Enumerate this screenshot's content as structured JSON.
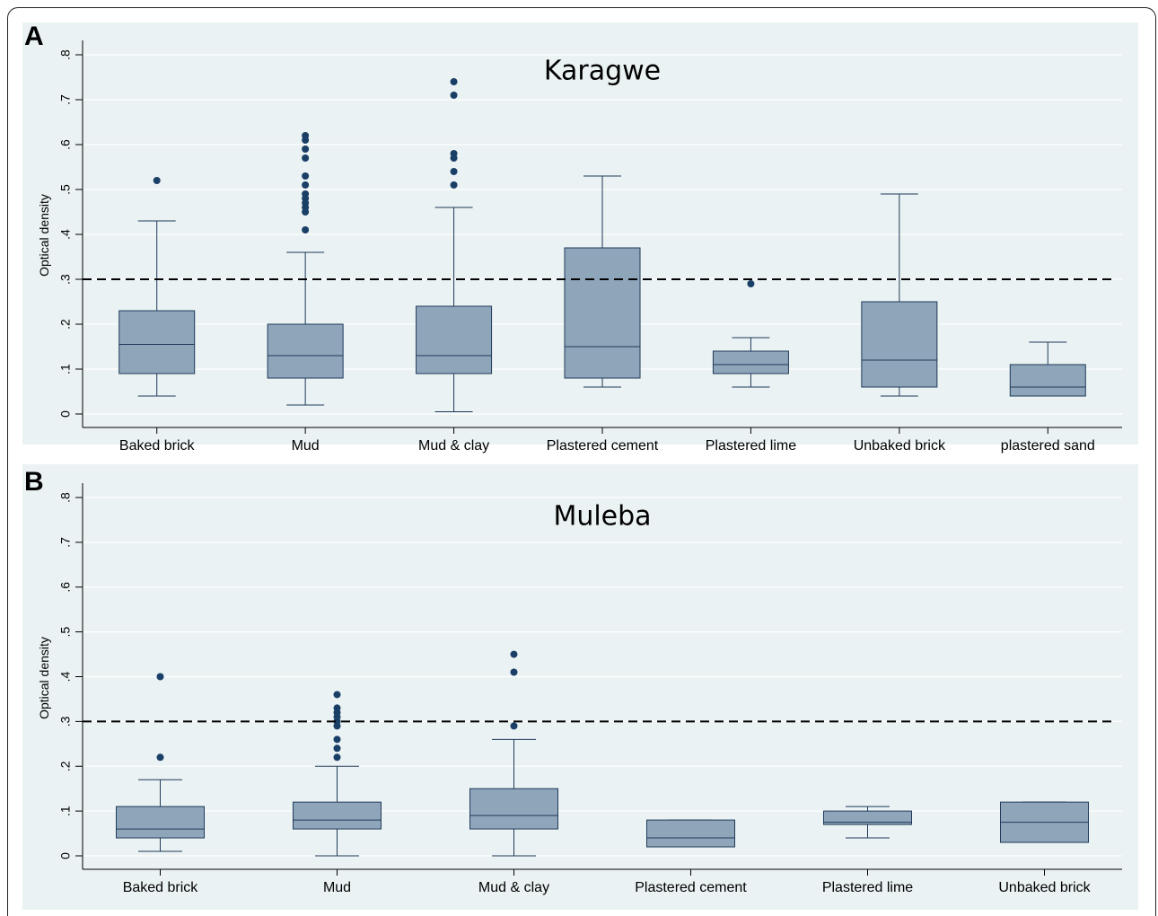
{
  "chart_data": [
    {
      "panel_letter": "A",
      "type": "box",
      "title": "Karagwe",
      "ylabel": "Optical density",
      "ylim": [
        0,
        0.8
      ],
      "yticks": [
        0,
        0.1,
        0.2,
        0.3,
        0.4,
        0.5,
        0.6,
        0.7,
        0.8
      ],
      "ytick_labels": [
        "0",
        ".1",
        ".2",
        ".3",
        ".4",
        ".5",
        ".6",
        ".7",
        ".8"
      ],
      "threshold": 0.3,
      "grid": true,
      "categories": [
        "Baked brick",
        "Mud",
        "Mud  & clay",
        "Plastered cement",
        "Plastered lime",
        "Unbaked brick",
        "plastered sand"
      ],
      "boxes": [
        {
          "whisker_low": 0.04,
          "q1": 0.09,
          "median": 0.155,
          "q3": 0.23,
          "whisker_high": 0.43,
          "outliers": [
            0.52
          ]
        },
        {
          "whisker_low": 0.02,
          "q1": 0.08,
          "median": 0.13,
          "q3": 0.2,
          "whisker_high": 0.36,
          "outliers": [
            0.41,
            0.45,
            0.46,
            0.47,
            0.48,
            0.49,
            0.51,
            0.53,
            0.57,
            0.59,
            0.61,
            0.62
          ]
        },
        {
          "whisker_low": 0.005,
          "q1": 0.09,
          "median": 0.13,
          "q3": 0.24,
          "whisker_high": 0.46,
          "outliers": [
            0.51,
            0.54,
            0.57,
            0.58,
            0.71,
            0.74
          ]
        },
        {
          "whisker_low": 0.06,
          "q1": 0.08,
          "median": 0.15,
          "q3": 0.37,
          "whisker_high": 0.53,
          "outliers": []
        },
        {
          "whisker_low": 0.06,
          "q1": 0.09,
          "median": 0.11,
          "q3": 0.14,
          "whisker_high": 0.17,
          "outliers": [
            0.29
          ]
        },
        {
          "whisker_low": 0.04,
          "q1": 0.06,
          "median": 0.12,
          "q3": 0.25,
          "whisker_high": 0.49,
          "outliers": []
        },
        {
          "whisker_low": 0.04,
          "q1": 0.04,
          "median": 0.06,
          "q3": 0.11,
          "whisker_high": 0.16,
          "outliers": []
        }
      ]
    },
    {
      "panel_letter": "B",
      "type": "box",
      "title": "Muleba",
      "ylabel": "Optical density",
      "ylim": [
        0,
        0.8
      ],
      "yticks": [
        0,
        0.1,
        0.2,
        0.3,
        0.4,
        0.5,
        0.6,
        0.7,
        0.8
      ],
      "ytick_labels": [
        "0",
        ".1",
        ".2",
        ".3",
        ".4",
        ".5",
        ".6",
        ".7",
        ".8"
      ],
      "threshold": 0.3,
      "grid": true,
      "categories": [
        "Baked brick",
        "Mud",
        "Mud  & clay",
        "Plastered cement",
        "Plastered lime",
        "Unbaked brick"
      ],
      "boxes": [
        {
          "whisker_low": 0.01,
          "q1": 0.04,
          "median": 0.06,
          "q3": 0.11,
          "whisker_high": 0.17,
          "outliers": [
            0.22,
            0.4
          ]
        },
        {
          "whisker_low": 0.0,
          "q1": 0.06,
          "median": 0.08,
          "q3": 0.12,
          "whisker_high": 0.2,
          "outliers": [
            0.22,
            0.24,
            0.26,
            0.29,
            0.3,
            0.31,
            0.32,
            0.33,
            0.36
          ]
        },
        {
          "whisker_low": 0.0,
          "q1": 0.06,
          "median": 0.09,
          "q3": 0.15,
          "whisker_high": 0.26,
          "outliers": [
            0.29,
            0.41,
            0.45
          ]
        },
        {
          "whisker_low": 0.02,
          "q1": 0.02,
          "median": 0.04,
          "q3": 0.08,
          "whisker_high": 0.08,
          "outliers": []
        },
        {
          "whisker_low": 0.04,
          "q1": 0.07,
          "median": 0.075,
          "q3": 0.1,
          "whisker_high": 0.11,
          "outliers": []
        },
        {
          "whisker_low": 0.03,
          "q1": 0.03,
          "median": 0.075,
          "q3": 0.12,
          "whisker_high": 0.12,
          "outliers": []
        }
      ]
    }
  ],
  "colors": {
    "box_fill": "#8fa5ba",
    "box_stroke": "#1f3b5a",
    "outlier": "#1a3f66",
    "panel_bg": "#eaf2f3",
    "grid": "#ffffff",
    "threshold": "#000000"
  }
}
